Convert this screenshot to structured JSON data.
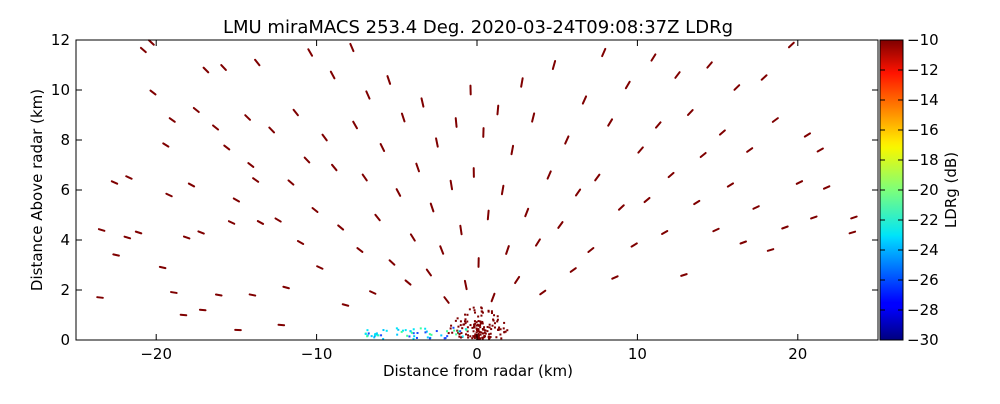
{
  "chart_data": {
    "type": "scatter",
    "title": "LMU miraMACS 253.4 Deg. 2020-03-24T09:08:37Z  LDRg",
    "xlabel": "Distance from radar (km)",
    "ylabel": "Distance Above radar  (km)",
    "xlim": [
      -25,
      25
    ],
    "ylim": [
      0,
      12
    ],
    "xticks": [
      -20,
      -10,
      0,
      10,
      20
    ],
    "xtick_labels": [
      "−20",
      "−10",
      "0",
      "10",
      "20"
    ],
    "yticks": [
      0,
      2,
      4,
      6,
      8,
      10,
      12
    ],
    "ytick_labels": [
      "0",
      "2",
      "4",
      "6",
      "8",
      "10",
      "12"
    ],
    "grid": false,
    "colorbar": {
      "label": "LDRg (dB)",
      "range": [
        -30,
        -10
      ],
      "colormap": "jet",
      "ticks": [
        -30,
        -28,
        -26,
        -24,
        -22,
        -20,
        -18,
        -16,
        -14,
        -12,
        -10
      ],
      "tick_labels": [
        "−30",
        "−28",
        "−26",
        "−24",
        "−22",
        "−20",
        "−18",
        "−16",
        "−14",
        "−12",
        "−10"
      ]
    },
    "dominant_color": "#7f0000",
    "series": [
      {
        "values": [
          {
            "x": -23.4,
            "y": 4.4
          },
          {
            "x": -23.5,
            "y": 1.7
          },
          {
            "x": -22.6,
            "y": 6.3
          },
          {
            "x": -22.5,
            "y": 3.4
          },
          {
            "x": -21.7,
            "y": 6.5
          },
          {
            "x": -21.8,
            "y": 4.1
          },
          {
            "x": -21.1,
            "y": 4.3
          },
          {
            "x": -20.8,
            "y": 11.6
          },
          {
            "x": -20.3,
            "y": 11.9
          },
          {
            "x": -20.2,
            "y": 9.9
          },
          {
            "x": -19.6,
            "y": 2.9
          },
          {
            "x": -19.2,
            "y": 5.8
          },
          {
            "x": -19.4,
            "y": 7.8
          },
          {
            "x": -19.0,
            "y": 8.8
          },
          {
            "x": -18.9,
            "y": 1.9
          },
          {
            "x": -18.3,
            "y": 1.0
          },
          {
            "x": -18.1,
            "y": 4.1
          },
          {
            "x": -17.8,
            "y": 6.2
          },
          {
            "x": -17.5,
            "y": 9.2
          },
          {
            "x": -17.2,
            "y": 4.3
          },
          {
            "x": -17.1,
            "y": 1.2
          },
          {
            "x": -16.9,
            "y": 10.8
          },
          {
            "x": -16.3,
            "y": 8.5
          },
          {
            "x": -16.1,
            "y": 1.8
          },
          {
            "x": -15.8,
            "y": 10.9
          },
          {
            "x": -15.6,
            "y": 7.7
          },
          {
            "x": -15.3,
            "y": 4.7
          },
          {
            "x": -15.0,
            "y": 5.6
          },
          {
            "x": -14.9,
            "y": 0.4
          },
          {
            "x": -14.3,
            "y": 8.9
          },
          {
            "x": -14.1,
            "y": 7.0
          },
          {
            "x": -14.0,
            "y": 1.8
          },
          {
            "x": -13.8,
            "y": 6.4
          },
          {
            "x": -13.5,
            "y": 4.7
          },
          {
            "x": -13.7,
            "y": 11.1
          },
          {
            "x": -12.8,
            "y": 8.4
          },
          {
            "x": -12.4,
            "y": 4.8
          },
          {
            "x": -12.2,
            "y": 0.6
          },
          {
            "x": -11.9,
            "y": 2.1
          },
          {
            "x": -11.6,
            "y": 6.3
          },
          {
            "x": -11.3,
            "y": 9.1
          },
          {
            "x": -11.0,
            "y": 3.9
          },
          {
            "x": -10.6,
            "y": 7.2
          },
          {
            "x": -10.4,
            "y": 11.5
          },
          {
            "x": -10.1,
            "y": 5.2
          },
          {
            "x": -9.8,
            "y": 2.9
          },
          {
            "x": -9.5,
            "y": 8.1
          },
          {
            "x": -9.0,
            "y": 10.6
          },
          {
            "x": -8.9,
            "y": 6.9
          },
          {
            "x": -8.5,
            "y": 4.5
          },
          {
            "x": -8.2,
            "y": 1.4
          },
          {
            "x": -7.8,
            "y": 11.7
          },
          {
            "x": -7.6,
            "y": 8.6
          },
          {
            "x": -7.3,
            "y": 3.6
          },
          {
            "x": -7.0,
            "y": 6.5
          },
          {
            "x": -6.8,
            "y": 9.8
          },
          {
            "x": -6.5,
            "y": 1.9
          },
          {
            "x": -6.2,
            "y": 4.9
          },
          {
            "x": -5.9,
            "y": 7.7
          },
          {
            "x": -5.5,
            "y": 10.4
          },
          {
            "x": -5.3,
            "y": 3.1
          },
          {
            "x": -4.9,
            "y": 5.9
          },
          {
            "x": -4.6,
            "y": 8.9
          },
          {
            "x": -4.3,
            "y": 2.3
          },
          {
            "x": -4.0,
            "y": 4.1
          },
          {
            "x": -3.7,
            "y": 6.9
          },
          {
            "x": -3.4,
            "y": 9.5
          },
          {
            "x": -3.0,
            "y": 2.7
          },
          {
            "x": -2.8,
            "y": 5.3
          },
          {
            "x": -2.5,
            "y": 7.9
          },
          {
            "x": -2.2,
            "y": 3.6
          },
          {
            "x": -1.9,
            "y": 1.6
          },
          {
            "x": -1.6,
            "y": 6.2
          },
          {
            "x": -1.3,
            "y": 8.7
          },
          {
            "x": -1.0,
            "y": 4.4
          },
          {
            "x": -0.7,
            "y": 2.2
          },
          {
            "x": -0.4,
            "y": 10.0
          },
          {
            "x": -0.2,
            "y": 6.7
          },
          {
            "x": 0.1,
            "y": 3.1
          },
          {
            "x": 0.4,
            "y": 8.3
          },
          {
            "x": 0.7,
            "y": 5.0
          },
          {
            "x": 1.0,
            "y": 1.7
          },
          {
            "x": 1.3,
            "y": 9.2
          },
          {
            "x": 1.6,
            "y": 6.0
          },
          {
            "x": 1.9,
            "y": 3.6
          },
          {
            "x": 2.2,
            "y": 7.6
          },
          {
            "x": 2.5,
            "y": 2.4
          },
          {
            "x": 2.8,
            "y": 10.3
          },
          {
            "x": 3.1,
            "y": 5.1
          },
          {
            "x": 3.5,
            "y": 8.9
          },
          {
            "x": 3.8,
            "y": 3.9
          },
          {
            "x": 4.1,
            "y": 1.9
          },
          {
            "x": 4.5,
            "y": 6.6
          },
          {
            "x": 4.8,
            "y": 11.0
          },
          {
            "x": 5.2,
            "y": 4.6
          },
          {
            "x": 5.6,
            "y": 8.0
          },
          {
            "x": 6.0,
            "y": 2.8
          },
          {
            "x": 6.3,
            "y": 5.9
          },
          {
            "x": 6.7,
            "y": 9.6
          },
          {
            "x": 7.1,
            "y": 3.6
          },
          {
            "x": 7.5,
            "y": 6.5
          },
          {
            "x": 7.9,
            "y": 11.5
          },
          {
            "x": 8.3,
            "y": 8.7
          },
          {
            "x": 8.6,
            "y": 2.5
          },
          {
            "x": 9.0,
            "y": 5.3
          },
          {
            "x": 9.4,
            "y": 10.2
          },
          {
            "x": 9.8,
            "y": 3.8
          },
          {
            "x": 10.2,
            "y": 7.6
          },
          {
            "x": 10.6,
            "y": 5.6
          },
          {
            "x": 11.0,
            "y": 11.3
          },
          {
            "x": 11.3,
            "y": 8.6
          },
          {
            "x": 11.7,
            "y": 4.3
          },
          {
            "x": 12.1,
            "y": 6.6
          },
          {
            "x": 12.5,
            "y": 10.6
          },
          {
            "x": 12.9,
            "y": 2.6
          },
          {
            "x": 13.3,
            "y": 9.1
          },
          {
            "x": 13.7,
            "y": 5.5
          },
          {
            "x": 14.1,
            "y": 7.4
          },
          {
            "x": 14.5,
            "y": 11.0
          },
          {
            "x": 14.9,
            "y": 4.4
          },
          {
            "x": 15.3,
            "y": 8.3
          },
          {
            "x": 15.8,
            "y": 6.2
          },
          {
            "x": 16.2,
            "y": 10.1
          },
          {
            "x": 16.6,
            "y": 3.9
          },
          {
            "x": 17.0,
            "y": 7.6
          },
          {
            "x": 17.4,
            "y": 5.3
          },
          {
            "x": 17.9,
            "y": 10.5
          },
          {
            "x": 18.3,
            "y": 3.6
          },
          {
            "x": 18.6,
            "y": 8.8
          },
          {
            "x": 19.2,
            "y": 4.5
          },
          {
            "x": 19.6,
            "y": 11.8
          },
          {
            "x": 20.1,
            "y": 6.3
          },
          {
            "x": 20.6,
            "y": 8.2
          },
          {
            "x": 21.0,
            "y": 4.9
          },
          {
            "x": 21.4,
            "y": 7.6
          },
          {
            "x": 21.8,
            "y": 6.1
          },
          {
            "x": 23.5,
            "y": 4.9
          },
          {
            "x": 23.4,
            "y": 4.3
          }
        ]
      }
    ]
  }
}
